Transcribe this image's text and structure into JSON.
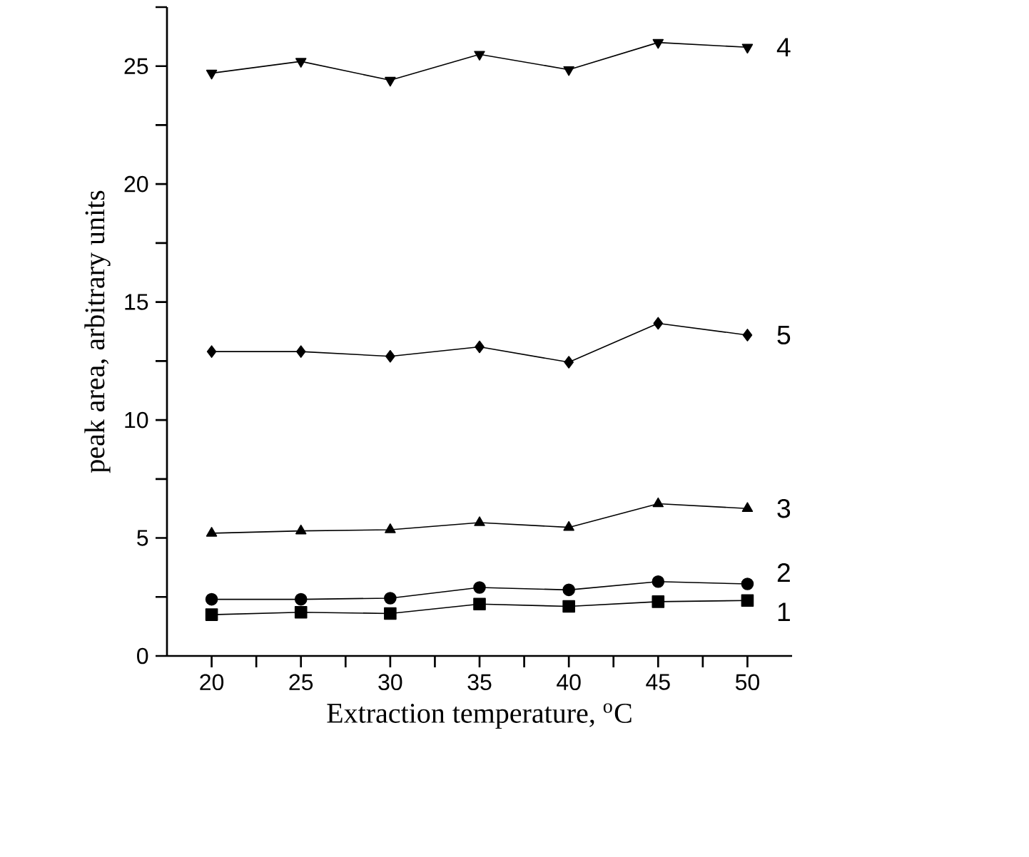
{
  "chart_data": {
    "type": "line",
    "xlabel": "Extraction temperature, $^{o}$C",
    "ylabel": "peak area, arbitrary units",
    "x": [
      20,
      25,
      30,
      35,
      40,
      45,
      50
    ],
    "xlim": [
      17.5,
      52.5
    ],
    "xticks": [
      20,
      {
        "value": 22.5,
        "label": null
      },
      25,
      {
        "value": 27.5,
        "label": null
      },
      30,
      {
        "value": 32.5,
        "label": null
      },
      35,
      {
        "value": 37.5,
        "label": null
      },
      40,
      {
        "value": 42.5,
        "label": null
      },
      45,
      {
        "value": 47.5,
        "label": null
      },
      50
    ],
    "ylim": [
      0,
      27.5
    ],
    "yticks": [
      0,
      {
        "value": 2.5,
        "label": null
      },
      5,
      {
        "value": 7.5,
        "label": null
      },
      10,
      {
        "value": 12.5,
        "label": null
      },
      15,
      {
        "value": 17.5,
        "label": null
      },
      20,
      {
        "value": 22.5,
        "label": null
      },
      25,
      {
        "value": 27.5,
        "label": null
      }
    ],
    "grid": false,
    "legend": false,
    "line_style": "solid",
    "series": [
      {
        "name": "1",
        "color": "#000000",
        "marker": "square",
        "values": [
          1.75,
          1.85,
          1.8,
          2.2,
          2.1,
          2.3,
          2.35
        ]
      },
      {
        "name": "2",
        "color": "#000000",
        "marker": "circle",
        "values": [
          2.4,
          2.4,
          2.45,
          2.9,
          2.8,
          3.15,
          3.05
        ]
      },
      {
        "name": "3",
        "color": "#000000",
        "marker": "triangle",
        "values": [
          5.2,
          5.3,
          5.35,
          5.65,
          5.45,
          6.45,
          6.25
        ]
      },
      {
        "name": "4",
        "color": "#000000",
        "marker": "triangle-down",
        "values": [
          24.7,
          25.2,
          24.4,
          25.5,
          24.85,
          26.0,
          25.8
        ]
      },
      {
        "name": "5",
        "color": "#000000",
        "marker": "diamond",
        "values": [
          12.9,
          12.9,
          12.7,
          13.1,
          12.45,
          14.1,
          13.6
        ]
      }
    ]
  }
}
